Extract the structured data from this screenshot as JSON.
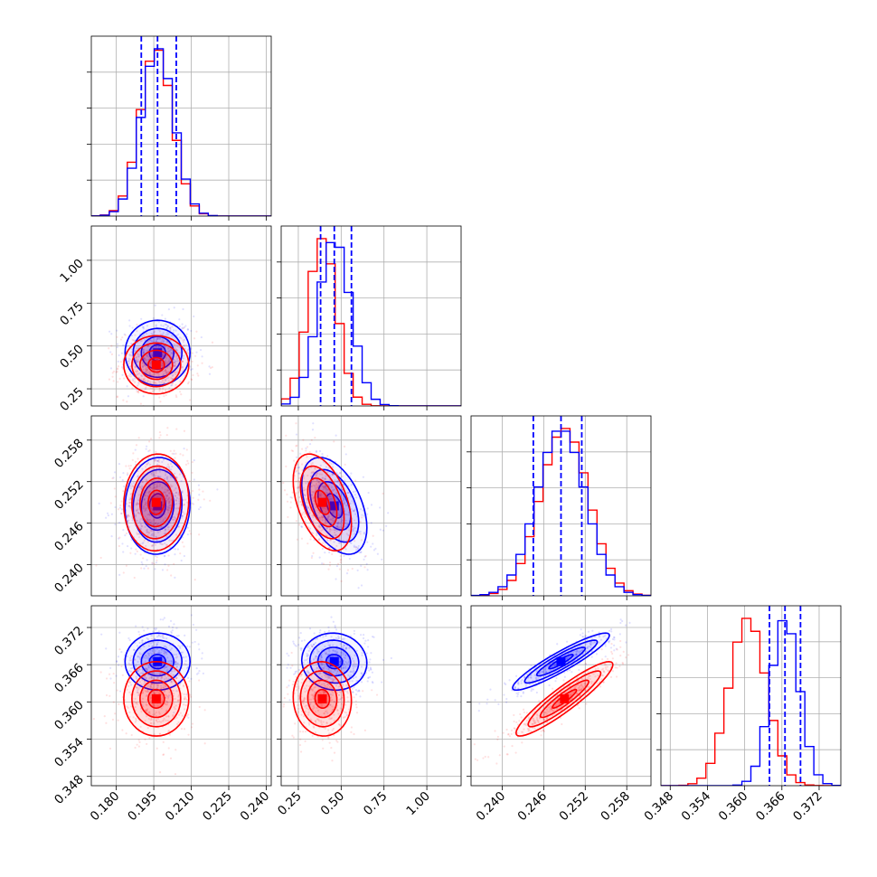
{
  "chart_data": {
    "type": "corner",
    "parameters": 4,
    "grid": true,
    "axes": [
      {
        "ticks": [
          0.18,
          0.195,
          0.21,
          0.225,
          0.24
        ],
        "tick_labels": [
          "0.180",
          "0.195",
          "0.210",
          "0.225",
          "0.240"
        ],
        "range": [
          0.17,
          0.242
        ]
      },
      {
        "ticks": [
          0.25,
          0.5,
          0.75,
          1.0
        ],
        "tick_labels": [
          "0.25",
          "0.50",
          "0.75",
          "1.00"
        ],
        "range": [
          0.15,
          1.2
        ]
      },
      {
        "ticks": [
          0.24,
          0.246,
          0.252,
          0.258
        ],
        "tick_labels": [
          "0.240",
          "0.246",
          "0.252",
          "0.258"
        ],
        "range": [
          0.2355,
          0.2615
        ]
      },
      {
        "ticks": [
          0.348,
          0.354,
          0.36,
          0.366,
          0.372
        ],
        "tick_labels": [
          "0.348",
          "0.354",
          "0.360",
          "0.366",
          "0.372"
        ],
        "range": [
          0.3465,
          0.3755
        ]
      }
    ],
    "series": [
      {
        "color": "#0000ff",
        "mean": [
          0.1965,
          0.46,
          0.2485,
          0.3665
        ],
        "sd": [
          0.0065,
          0.095,
          0.0035,
          0.0023
        ],
        "corr": {
          "0-1": 0.0,
          "0-2": 0.05,
          "1-2": -0.45,
          "0-3": 0.0,
          "1-3": -0.05,
          "2-3": 0.92
        },
        "quantiles": [
          [
            0.19,
            0.1965,
            0.204
          ],
          [
            0.38,
            0.46,
            0.56
          ],
          [
            0.2445,
            0.2485,
            0.2515
          ],
          [
            0.364,
            0.3665,
            0.369
          ]
        ]
      },
      {
        "color": "#ff0000",
        "mean": [
          0.196,
          0.39,
          0.249,
          0.3605
        ],
        "sd": [
          0.0065,
          0.085,
          0.0035,
          0.003
        ],
        "corr": {
          "0-1": 0.0,
          "0-2": 0.05,
          "1-2": -0.45,
          "0-3": 0.0,
          "1-3": -0.05,
          "2-3": 0.92
        }
      }
    ]
  }
}
